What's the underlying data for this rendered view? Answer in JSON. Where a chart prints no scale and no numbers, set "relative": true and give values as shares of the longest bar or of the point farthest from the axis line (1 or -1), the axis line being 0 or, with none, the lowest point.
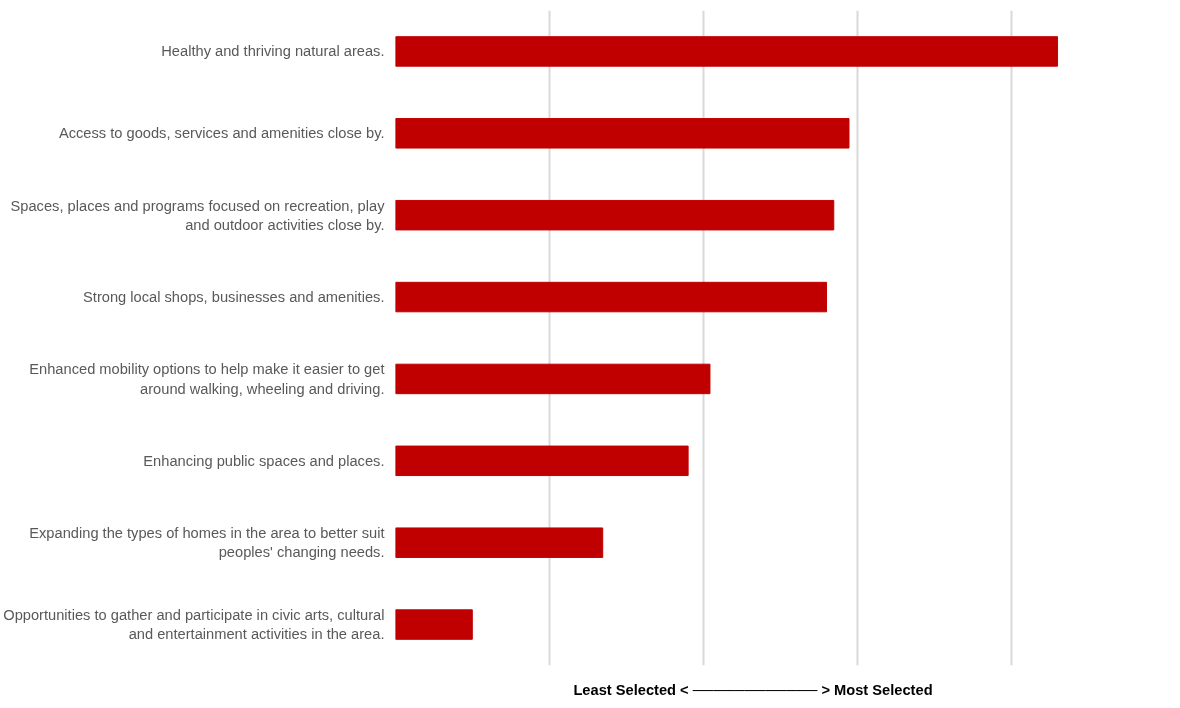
{
  "chart_data": {
    "type": "bar",
    "orientation": "horizontal",
    "relative": true,
    "grid": "x",
    "color": "#c00000",
    "xlabel": "Least Selected < ──────────── > Most Selected",
    "categories": [
      "Healthy and thriving natural areas.",
      "Access to goods, services and amenities close by.",
      "Spaces, places and programs focused on recreation, play\nand outdoor activities close by.",
      "Strong local shops, businesses and amenities.",
      "Enhanced mobility options to help make it easier to get\naround walking, wheeling and driving.",
      "Enhancing public spaces and places.",
      "Expanding the types of homes in the area to better suit\npeoples' changing needs.",
      "Opportunities to gather and participate in civic arts, cultural\nand entertainment activities in the area."
    ],
    "values": [
      1,
      0.685,
      0.662,
      0.651,
      0.475,
      0.442,
      0.313,
      0.116
    ]
  }
}
